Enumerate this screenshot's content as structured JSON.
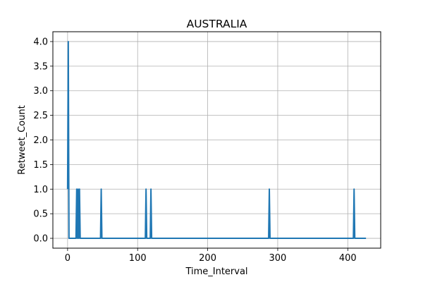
{
  "chart_data": {
    "type": "line",
    "title": "AUSTRALIA",
    "xlabel": "Time_Interval",
    "ylabel": "Retweet_Count",
    "xlim": [
      -21,
      447
    ],
    "ylim": [
      -0.2,
      4.2
    ],
    "xticks": [
      0,
      100,
      200,
      300,
      400
    ],
    "xtick_labels": [
      "0",
      "100",
      "200",
      "300",
      "400"
    ],
    "yticks": [
      0.0,
      0.5,
      1.0,
      1.5,
      2.0,
      2.5,
      3.0,
      3.5,
      4.0
    ],
    "ytick_labels": [
      "0.0",
      "0.5",
      "1.0",
      "1.5",
      "2.0",
      "2.5",
      "3.0",
      "3.5",
      "4.0"
    ],
    "grid": true,
    "series": [
      {
        "color": "#1f77b4",
        "x": [
          0,
          1,
          2,
          3,
          12,
          13,
          14,
          15,
          16,
          17,
          18,
          47,
          48,
          49,
          111,
          112,
          113,
          118,
          119,
          120,
          287,
          288,
          289,
          408,
          409,
          410,
          426
        ],
        "y": [
          1,
          4,
          0,
          0,
          0,
          1,
          0,
          1,
          0,
          1,
          0,
          0,
          1,
          0,
          0,
          1,
          0,
          0,
          1,
          0,
          0,
          1,
          0,
          0,
          1,
          0,
          0
        ]
      }
    ]
  }
}
